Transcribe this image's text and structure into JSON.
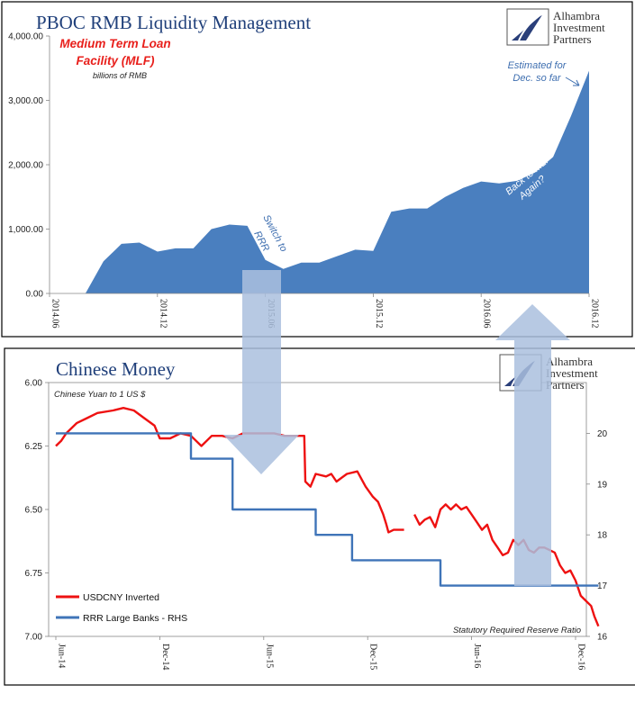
{
  "logo": {
    "line1": "Alhambra",
    "line2": "Investment",
    "line3": "Partners"
  },
  "colors": {
    "area": "#4a7fbf",
    "area_label": "#3f6fb0",
    "usdcny": "#ee1111",
    "rrr": "#3f74b8",
    "arrow": "#aabfde",
    "frame": "#000000",
    "red_title": "#e8201c"
  },
  "chart_data": [
    {
      "type": "area",
      "title": "PBOC RMB Liquidity Management",
      "subtitle_line1": "Medium Term Loan",
      "subtitle_line2": "Facility (MLF)",
      "unit_label": "billions of RMB",
      "x_ticks": [
        "2014.06",
        "2014.12",
        "2015.06",
        "2015.12",
        "2016.06",
        "2016.12"
      ],
      "y_ticks": [
        "0.00",
        "1,000.00",
        "2,000.00",
        "3,000.00",
        "4,000.00"
      ],
      "ylim": [
        0,
        4000
      ],
      "x": [
        "2014.06",
        "2014.07",
        "2014.08",
        "2014.09",
        "2014.10",
        "2014.11",
        "2014.12",
        "2015.01",
        "2015.02",
        "2015.03",
        "2015.04",
        "2015.05",
        "2015.06",
        "2015.07",
        "2015.08",
        "2015.09",
        "2015.10",
        "2015.11",
        "2015.12",
        "2016.01",
        "2016.02",
        "2016.03",
        "2016.04",
        "2016.05",
        "2016.06",
        "2016.07",
        "2016.08",
        "2016.09",
        "2016.10",
        "2016.11",
        "2016.12"
      ],
      "values": [
        0,
        0,
        0,
        500,
        770,
        790,
        650,
        700,
        700,
        1000,
        1070,
        1050,
        520,
        380,
        480,
        480,
        580,
        680,
        660,
        1270,
        1320,
        1320,
        1500,
        1640,
        1740,
        1710,
        1750,
        1880,
        2120,
        2760,
        3460
      ],
      "annotations": [
        "Switch to RRR",
        "Back to MLF Again?",
        "Estimated for Dec. so far"
      ]
    },
    {
      "type": "line",
      "title": "Chinese Money",
      "subtitle": "Chinese Yuan to 1 US $",
      "footnote": "Statutory Required Reserve Ratio",
      "x_ticks": [
        "Jun-14",
        "Dec-14",
        "Jun-15",
        "Dec-15",
        "Jun-16",
        "Dec-16"
      ],
      "y_left_ticks": [
        "6.00",
        "6.25",
        "6.50",
        "6.75",
        "7.00"
      ],
      "y_left_lim": [
        6.0,
        7.0
      ],
      "y_left_inverted": true,
      "y_right_ticks": [
        "16",
        "17",
        "18",
        "19",
        "20"
      ],
      "y_right_lim": [
        16,
        21
      ],
      "legend": [
        "USDCNY Inverted",
        "RRR Large Banks - RHS"
      ],
      "series": [
        {
          "name": "USDCNY Inverted",
          "axis": "left",
          "points": [
            [
              0.0,
              6.25
            ],
            [
              0.05,
              6.23
            ],
            [
              0.1,
              6.2
            ],
            [
              0.2,
              6.16
            ],
            [
              0.3,
              6.14
            ],
            [
              0.4,
              6.12
            ],
            [
              0.55,
              6.11
            ],
            [
              0.65,
              6.1
            ],
            [
              0.75,
              6.11
            ],
            [
              0.85,
              6.14
            ],
            [
              0.95,
              6.17
            ],
            [
              1.0,
              6.22
            ],
            [
              1.1,
              6.22
            ],
            [
              1.2,
              6.2
            ],
            [
              1.3,
              6.21
            ],
            [
              1.4,
              6.25
            ],
            [
              1.5,
              6.21
            ],
            [
              1.6,
              6.21
            ],
            [
              1.7,
              6.22
            ],
            [
              1.8,
              6.2
            ],
            [
              1.9,
              6.2
            ],
            [
              2.0,
              6.2
            ],
            [
              2.1,
              6.2
            ],
            [
              2.2,
              6.21
            ],
            [
              2.3,
              6.21
            ],
            [
              2.39,
              6.21
            ],
            [
              2.4,
              6.39
            ],
            [
              2.45,
              6.41
            ],
            [
              2.5,
              6.36
            ],
            [
              2.6,
              6.37
            ],
            [
              2.65,
              6.36
            ],
            [
              2.7,
              6.39
            ],
            [
              2.8,
              6.36
            ],
            [
              2.9,
              6.35
            ],
            [
              2.98,
              6.41
            ],
            [
              3.05,
              6.45
            ],
            [
              3.1,
              6.47
            ],
            [
              3.15,
              6.52
            ],
            [
              3.18,
              6.56
            ],
            [
              3.2,
              6.59
            ],
            [
              3.25,
              6.58
            ],
            [
              3.35,
              6.58
            ],
            [
              null,
              null
            ],
            [
              3.45,
              6.52
            ],
            [
              3.5,
              6.56
            ],
            [
              3.55,
              6.54
            ],
            [
              3.6,
              6.53
            ],
            [
              3.65,
              6.57
            ],
            [
              3.7,
              6.5
            ],
            [
              3.75,
              6.48
            ],
            [
              3.8,
              6.5
            ],
            [
              3.85,
              6.48
            ],
            [
              3.9,
              6.5
            ],
            [
              3.95,
              6.49
            ],
            [
              4.0,
              6.52
            ],
            [
              4.05,
              6.55
            ],
            [
              4.1,
              6.58
            ],
            [
              4.15,
              6.56
            ],
            [
              4.2,
              6.62
            ],
            [
              4.25,
              6.65
            ],
            [
              4.3,
              6.68
            ],
            [
              4.35,
              6.67
            ],
            [
              4.4,
              6.62
            ],
            [
              4.45,
              6.64
            ],
            [
              4.5,
              6.62
            ],
            [
              4.55,
              6.66
            ],
            [
              4.6,
              6.67
            ],
            [
              4.65,
              6.65
            ],
            [
              4.7,
              6.65
            ],
            [
              4.75,
              6.66
            ],
            [
              4.8,
              6.67
            ],
            [
              4.85,
              6.72
            ],
            [
              4.9,
              6.75
            ],
            [
              4.95,
              6.74
            ],
            [
              5.0,
              6.78
            ],
            [
              5.05,
              6.84
            ],
            [
              5.1,
              6.86
            ],
            [
              5.15,
              6.88
            ],
            [
              5.18,
              6.92
            ],
            [
              5.22,
              6.96
            ]
          ]
        },
        {
          "name": "RRR Large Banks - RHS",
          "axis": "right",
          "points": [
            [
              0.0,
              20.0
            ],
            [
              1.3,
              20.0
            ],
            [
              1.3,
              19.5
            ],
            [
              1.7,
              19.5
            ],
            [
              1.7,
              18.5
            ],
            [
              2.5,
              18.5
            ],
            [
              2.5,
              18.0
            ],
            [
              2.85,
              18.0
            ],
            [
              2.85,
              17.5
            ],
            [
              3.7,
              17.5
            ],
            [
              3.7,
              17.0
            ],
            [
              5.22,
              17.0
            ]
          ]
        }
      ]
    }
  ]
}
